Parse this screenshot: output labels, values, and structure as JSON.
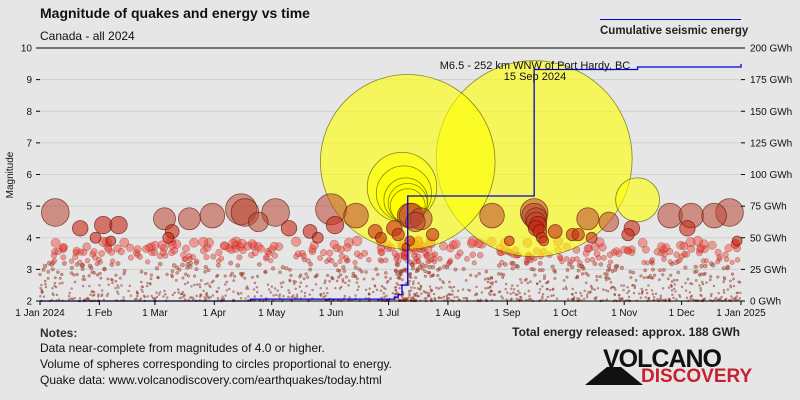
{
  "header": {
    "title": "Magnitude of quakes and energy vs time",
    "subtitle": "Canada - all 2024",
    "legend_label": "Cumulative seismic energy"
  },
  "chart_data": {
    "type": "scatter",
    "title": "Magnitude of quakes and energy vs time",
    "subtitle": "Canada - all 2024",
    "ylabel": "Magnitude",
    "ylim": [
      2,
      10
    ],
    "y_ticks": [
      "2",
      "3",
      "4",
      "5",
      "6",
      "7",
      "8",
      "9",
      "10"
    ],
    "y2lim": [
      0,
      200
    ],
    "y2_unit": "GWh",
    "y2_ticks": [
      "0 GWh",
      "25 GWh",
      "50 GWh",
      "75 GWh",
      "100 GWh",
      "125 GWh",
      "150 GWh",
      "175 GWh",
      "200 GWh"
    ],
    "xlim": [
      "2024-01-01",
      "2025-01-01"
    ],
    "x_ticks": [
      {
        "date": "2024-01-01",
        "label": "1 Jan 2024"
      },
      {
        "date": "2024-02-01",
        "label": "1 Feb"
      },
      {
        "date": "2024-03-01",
        "label": "1 Mar"
      },
      {
        "date": "2024-04-01",
        "label": "1 Apr"
      },
      {
        "date": "2024-05-01",
        "label": "1 May"
      },
      {
        "date": "2024-06-01",
        "label": "1 Jun"
      },
      {
        "date": "2024-07-01",
        "label": "1 Jul"
      },
      {
        "date": "2024-08-01",
        "label": "1 Aug"
      },
      {
        "date": "2024-09-01",
        "label": "1 Sep"
      },
      {
        "date": "2024-10-01",
        "label": "1 Oct"
      },
      {
        "date": "2024-11-01",
        "label": "1 Nov"
      },
      {
        "date": "2024-12-01",
        "label": "1 Dec"
      },
      {
        "date": "2025-01-01",
        "label": "1 Jan 2025"
      }
    ],
    "grid": true,
    "legend_placement": "top-right",
    "colors": {
      "small_quake": "#b03010",
      "large_quake": "#ffff00",
      "energy_line": "#0000dd",
      "grid": "#cfcfcf"
    },
    "annotation": {
      "line1": "M6.5 - 252 km WNW of Port Hardy, BC",
      "line2": "15 Sep 2024"
    },
    "quakes": [
      [
        "2024-01-09",
        4.8
      ],
      [
        "2024-01-22",
        4.3
      ],
      [
        "2024-01-30",
        4.0
      ],
      [
        "2024-02-03",
        4.4
      ],
      [
        "2024-02-11",
        4.4
      ],
      [
        "2024-02-07",
        3.9
      ],
      [
        "2024-03-06",
        4.6
      ],
      [
        "2024-03-10",
        4.2
      ],
      [
        "2024-03-08",
        4.0
      ],
      [
        "2024-03-19",
        4.6
      ],
      [
        "2024-03-31",
        4.7
      ],
      [
        "2024-04-15",
        4.9
      ],
      [
        "2024-04-17",
        4.8
      ],
      [
        "2024-04-24",
        4.5
      ],
      [
        "2024-05-03",
        4.8
      ],
      [
        "2024-05-10",
        4.3
      ],
      [
        "2024-05-21",
        4.2
      ],
      [
        "2024-05-25",
        4.0
      ],
      [
        "2024-06-01",
        4.9
      ],
      [
        "2024-06-03",
        4.4
      ],
      [
        "2024-06-14",
        4.7
      ],
      [
        "2024-06-24",
        4.2
      ],
      [
        "2024-06-27",
        4.0
      ],
      [
        "2024-07-04",
        4.3
      ],
      [
        "2024-07-06",
        4.1
      ],
      [
        "2024-07-08",
        5.6
      ],
      [
        "2024-07-09",
        5.4
      ],
      [
        "2024-07-10",
        5.2
      ],
      [
        "2024-07-11",
        6.4
      ],
      [
        "2024-07-11",
        5.1
      ],
      [
        "2024-07-11",
        5.0
      ],
      [
        "2024-07-12",
        4.7
      ],
      [
        "2024-07-13",
        4.7
      ],
      [
        "2024-07-15",
        4.5
      ],
      [
        "2024-07-18",
        4.6
      ],
      [
        "2024-07-24",
        4.1
      ],
      [
        "2024-07-12",
        3.9
      ],
      [
        "2024-07-10",
        3.7
      ],
      [
        "2024-08-24",
        4.7
      ],
      [
        "2024-09-02",
        3.9
      ],
      [
        "2024-09-15",
        6.5
      ],
      [
        "2024-09-15",
        4.8
      ],
      [
        "2024-09-15",
        4.7
      ],
      [
        "2024-09-16",
        4.6
      ],
      [
        "2024-09-16",
        4.5
      ],
      [
        "2024-09-17",
        4.4
      ],
      [
        "2024-09-16",
        4.3
      ],
      [
        "2024-09-18",
        4.2
      ],
      [
        "2024-09-19",
        4.0
      ],
      [
        "2024-09-20",
        3.9
      ],
      [
        "2024-09-26",
        4.2
      ],
      [
        "2024-10-05",
        4.1
      ],
      [
        "2024-10-08",
        4.1
      ],
      [
        "2024-10-13",
        4.6
      ],
      [
        "2024-10-15",
        4.0
      ],
      [
        "2024-10-24",
        4.5
      ],
      [
        "2024-11-05",
        4.3
      ],
      [
        "2024-11-03",
        4.1
      ],
      [
        "2024-11-08",
        5.2
      ],
      [
        "2024-11-25",
        4.7
      ],
      [
        "2024-12-06",
        4.7
      ],
      [
        "2024-12-04",
        4.3
      ],
      [
        "2024-12-18",
        4.7
      ],
      [
        "2024-12-26",
        4.8
      ],
      [
        "2024-12-30",
        3.9
      ]
    ],
    "cumulative_energy": [
      [
        "2024-01-01",
        0
      ],
      [
        "2024-04-20",
        1.5
      ],
      [
        "2024-07-04",
        3
      ],
      [
        "2024-07-06",
        5
      ],
      [
        "2024-07-08",
        12.6
      ],
      [
        "2024-07-11",
        83
      ],
      [
        "2024-09-15",
        183
      ],
      [
        "2024-11-08",
        185
      ],
      [
        "2025-01-01",
        187.5
      ]
    ]
  },
  "footer": {
    "notes_title": "Notes:",
    "notes": [
      "Data near-complete from magnitudes of 4.0 or higher.",
      "Volume of spheres corresponding to circles proportional to energy.",
      "Quake data: www.volcanodiscovery.com/earthquakes/today.html"
    ],
    "total_energy": "Total energy released: approx. 188 GWh",
    "logo_top": "VOLCANO",
    "logo_bottom": "DISCOVERY"
  }
}
